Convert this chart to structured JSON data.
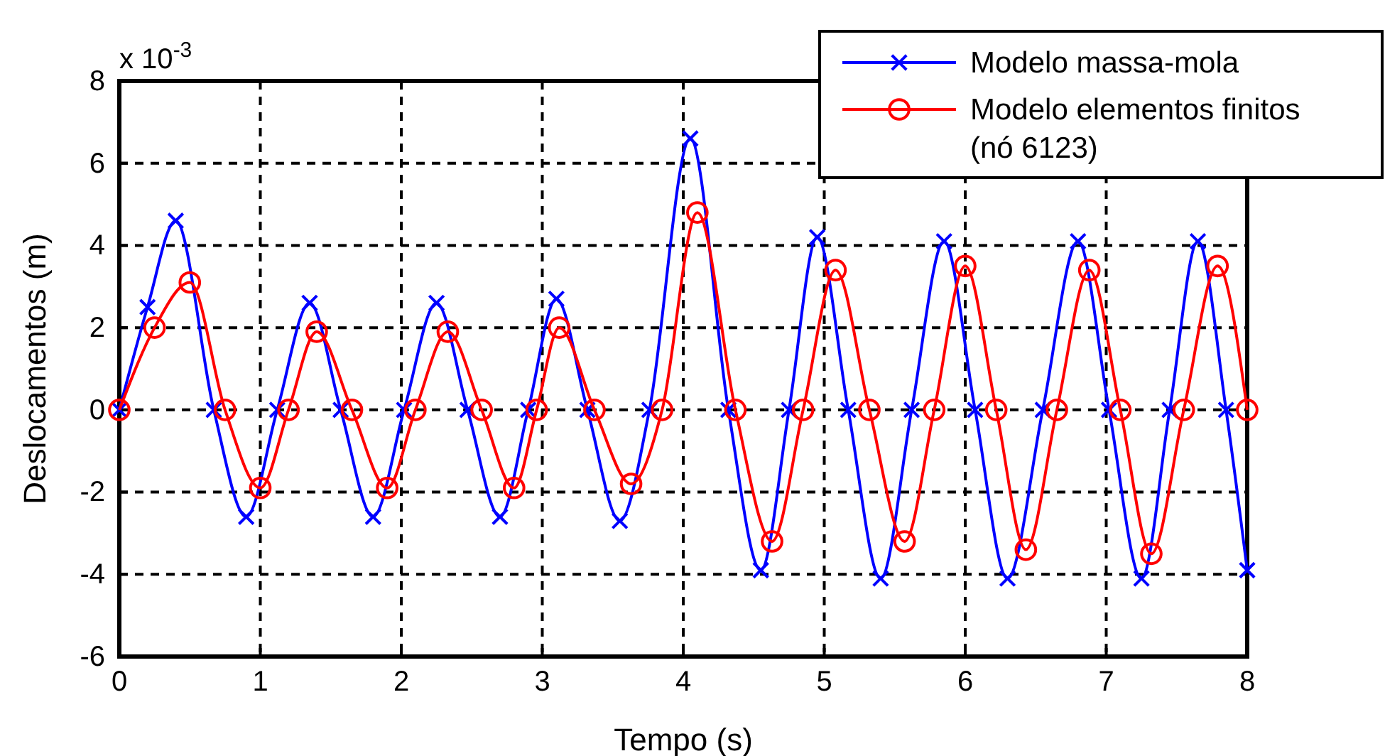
{
  "chart_data": {
    "type": "line",
    "xlabel": "Tempo (s)",
    "ylabel": "Deslocamentos (m)",
    "annotations": [
      "x 10$^{-3}$"
    ],
    "xlim": [
      0,
      8
    ],
    "xticks": [
      0,
      1,
      2,
      3,
      4,
      5,
      6,
      7,
      8
    ],
    "ylim": [
      -6,
      8
    ],
    "yticks": [
      -6,
      -4,
      -2,
      0,
      2,
      4,
      6,
      8
    ],
    "grid": true,
    "legend": "top right",
    "line_style": "solid",
    "series": [
      {
        "name": "Modelo massa-mola",
        "color": "#0000ff",
        "marker": "cross",
        "x": [
          0,
          0.2,
          0.4,
          0.67,
          0.9,
          1.12,
          1.35,
          1.57,
          1.8,
          2.02,
          2.25,
          2.47,
          2.7,
          2.9,
          3.1,
          3.32,
          3.55,
          3.76,
          4.05,
          4.32,
          4.55,
          4.75,
          4.95,
          5.17,
          5.4,
          5.62,
          5.85,
          6.07,
          6.3,
          6.55,
          6.8,
          7.02,
          7.25,
          7.45,
          7.65,
          7.85,
          8
        ],
        "values": [
          0,
          2.5,
          4.6,
          0,
          -2.6,
          0,
          2.6,
          0,
          -2.6,
          0,
          2.6,
          0,
          -2.6,
          0,
          2.7,
          0,
          -2.7,
          0,
          6.6,
          0,
          -3.9,
          0,
          4.2,
          0,
          -4.1,
          0,
          4.1,
          0,
          -4.1,
          0,
          4.1,
          0,
          -4.1,
          0,
          4.1,
          0,
          -3.9
        ]
      },
      {
        "name": "Modelo elementos finitos\n(nó 6123)",
        "color": "#ff0000",
        "marker": "circle",
        "x": [
          0,
          0.25,
          0.5,
          0.75,
          1.0,
          1.2,
          1.4,
          1.65,
          1.9,
          2.1,
          2.33,
          2.57,
          2.8,
          2.96,
          3.12,
          3.37,
          3.63,
          3.85,
          4.1,
          4.37,
          4.63,
          4.85,
          5.08,
          5.32,
          5.57,
          5.78,
          6.0,
          6.22,
          6.43,
          6.65,
          6.88,
          7.1,
          7.32,
          7.55,
          7.79,
          8
        ],
        "values": [
          0,
          2,
          3.1,
          0,
          -1.9,
          0,
          1.9,
          0,
          -1.9,
          0,
          1.9,
          0,
          -1.9,
          0,
          2,
          0,
          -1.8,
          0,
          4.8,
          0,
          -3.2,
          0,
          3.4,
          0,
          -3.2,
          0,
          3.5,
          0,
          -3.4,
          0,
          3.4,
          0,
          -3.5,
          0,
          3.5,
          0
        ]
      }
    ]
  }
}
